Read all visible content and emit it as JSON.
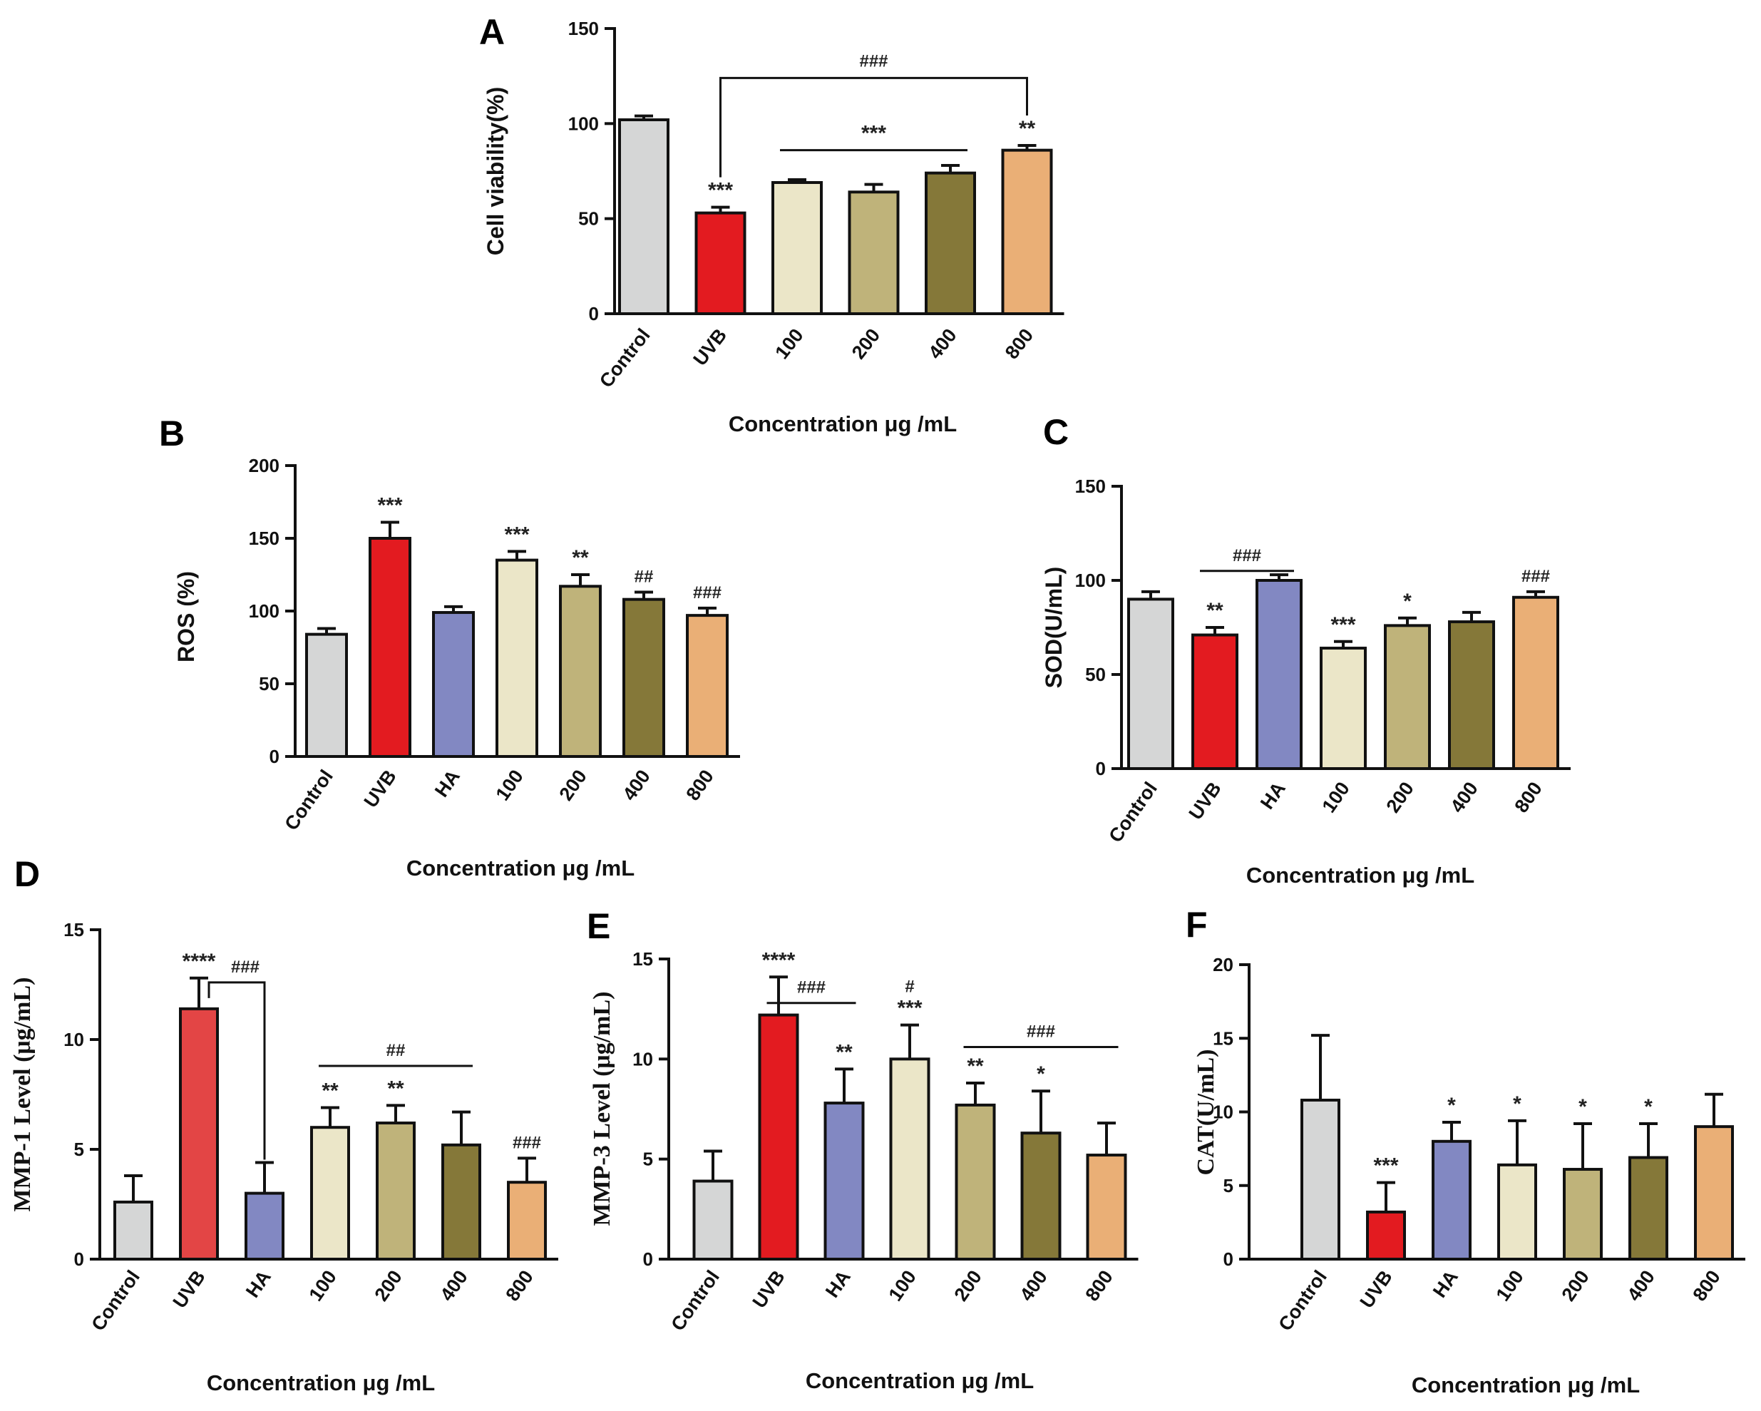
{
  "colors": {
    "Control": "#d5d6d6",
    "UVB": "#e31b20",
    "UVB_D": "#e34545",
    "HA": "#8288c2",
    "c100": "#ebe6c8",
    "c200": "#bfb37a",
    "c400": "#857839",
    "c800": "#eaaf76"
  },
  "chart_data": [
    {
      "panel": "A",
      "type": "bar",
      "categories": [
        "Control",
        "UVB",
        "100",
        "200",
        "400",
        "800"
      ],
      "values": [
        102,
        53,
        69,
        64,
        74,
        86
      ],
      "errors": [
        2,
        3,
        1.5,
        4,
        4,
        2.5
      ],
      "ylabel": "Cell viability(%)",
      "xlabel": "Concentration μg /mL",
      "ylim": [
        0,
        150
      ],
      "yticks": [
        0,
        50,
        100,
        150
      ],
      "tick_labels": [
        "0",
        "50",
        "100",
        "150"
      ],
      "annotations": [
        {
          "bar": 1,
          "text": "***"
        },
        {
          "bar": 5,
          "text": "**"
        }
      ],
      "brackets": [
        {
          "kind": "bracket",
          "from": 1,
          "to": 5,
          "y": 124,
          "text": "###"
        },
        {
          "kind": "line",
          "from": 2,
          "to": 4,
          "y": 86,
          "text": "***"
        }
      ]
    },
    {
      "panel": "B",
      "type": "bar",
      "categories": [
        "Control",
        "UVB",
        "HA",
        "100",
        "200",
        "400",
        "800"
      ],
      "values": [
        84,
        150,
        99,
        135,
        117,
        108,
        97
      ],
      "errors": [
        4,
        11,
        4,
        6,
        8,
        5,
        5
      ],
      "ylabel": "ROS (%)",
      "xlabel": "Concentration μg /mL",
      "ylim": [
        0,
        200
      ],
      "yticks": [
        0,
        50,
        100,
        150,
        200
      ],
      "tick_labels": [
        "0",
        "50",
        "100",
        "150",
        "200"
      ],
      "annotations": [
        {
          "bar": 1,
          "text": "***"
        },
        {
          "bar": 3,
          "text": "***"
        },
        {
          "bar": 4,
          "text": "**"
        },
        {
          "bar": 5,
          "text": "##"
        },
        {
          "bar": 6,
          "text": "###"
        }
      ],
      "brackets": []
    },
    {
      "panel": "C",
      "type": "bar",
      "categories": [
        "Control",
        "UVB",
        "HA",
        "100",
        "200",
        "400",
        "800"
      ],
      "values": [
        90,
        71,
        100,
        64,
        76,
        78,
        91
      ],
      "errors": [
        4,
        4,
        3,
        3.5,
        4,
        5,
        3
      ],
      "ylabel": "SOD(U/mL)",
      "xlabel": "Concentration μg /mL",
      "ylim": [
        0,
        150
      ],
      "yticks": [
        0,
        50,
        100,
        150
      ],
      "tick_labels": [
        "0",
        "50",
        "100",
        "150"
      ],
      "annotations": [
        {
          "bar": 1,
          "text": "**"
        },
        {
          "bar": 3,
          "text": "***"
        },
        {
          "bar": 4,
          "text": "*"
        },
        {
          "bar": 6,
          "text": "###"
        }
      ],
      "brackets": [
        {
          "kind": "line",
          "from": 1,
          "to": 2,
          "y": 105,
          "text": "###"
        }
      ]
    },
    {
      "panel": "D",
      "type": "bar",
      "categories": [
        "Control",
        "UVB",
        "HA",
        "100",
        "200",
        "400",
        "800"
      ],
      "values": [
        2.6,
        11.4,
        3.0,
        6.0,
        6.2,
        5.2,
        3.5
      ],
      "errors": [
        1.2,
        1.4,
        1.4,
        0.9,
        0.8,
        1.5,
        1.1
      ],
      "ylabel": "MMP-1 Level (μg/mL)",
      "xlabel": "Concentration μg /mL",
      "ylim": [
        0,
        15
      ],
      "yticks": [
        0,
        5,
        10,
        15
      ],
      "tick_labels": [
        "0",
        "5",
        "10",
        "15"
      ],
      "annotations": [
        {
          "bar": 1,
          "text": "****"
        },
        {
          "bar": 3,
          "text": "**"
        },
        {
          "bar": 4,
          "text": "**"
        },
        {
          "bar": 6,
          "text": "###"
        }
      ],
      "brackets": [
        {
          "kind": "step",
          "from": 1,
          "to": 2,
          "y": 12.6,
          "text": "###"
        },
        {
          "kind": "line",
          "from": 3,
          "to": 5,
          "y": 8.8,
          "text": "##"
        }
      ]
    },
    {
      "panel": "E",
      "type": "bar",
      "categories": [
        "Control",
        "UVB",
        "HA",
        "100",
        "200",
        "400",
        "800"
      ],
      "values": [
        3.9,
        12.2,
        7.8,
        10.0,
        7.7,
        6.3,
        5.2
      ],
      "errors": [
        1.5,
        1.9,
        1.7,
        1.7,
        1.1,
        2.1,
        1.6
      ],
      "ylabel": "MMP-3 Level (μg/mL)",
      "xlabel": "Concentration μg /mL",
      "ylim": [
        0,
        15
      ],
      "yticks": [
        0,
        5,
        10,
        15
      ],
      "tick_labels": [
        "0",
        "5",
        "10",
        "15"
      ],
      "annotations": [
        {
          "bar": 1,
          "text": "****"
        },
        {
          "bar": 2,
          "text": "**"
        },
        {
          "bar": 3,
          "text": "***"
        },
        {
          "bar": 3,
          "text": "#",
          "row": 2
        },
        {
          "bar": 4,
          "text": "**"
        },
        {
          "bar": 5,
          "text": "*"
        }
      ],
      "brackets": [
        {
          "kind": "line",
          "from": 1,
          "to": 2,
          "y": 12.8,
          "text": "###"
        },
        {
          "kind": "line",
          "from": 4,
          "to": 6,
          "y": 10.6,
          "text": "###"
        }
      ]
    },
    {
      "panel": "F",
      "type": "bar",
      "categories": [
        "Control",
        "UVB",
        "HA",
        "100",
        "200",
        "400",
        "800"
      ],
      "values": [
        10.8,
        3.2,
        8.0,
        6.4,
        6.1,
        6.9,
        9.0
      ],
      "errors": [
        4.4,
        2.0,
        1.3,
        3.0,
        3.1,
        2.3,
        2.2
      ],
      "ylabel": "CAT(U/mL)",
      "xlabel": "Concentration μg /mL",
      "ylim": [
        0,
        20
      ],
      "yticks": [
        0,
        5,
        10,
        15,
        20
      ],
      "tick_labels": [
        "0",
        "5",
        "10",
        "15",
        "20"
      ],
      "annotations": [
        {
          "bar": 1,
          "text": "***"
        },
        {
          "bar": 2,
          "text": "*"
        },
        {
          "bar": 3,
          "text": "*"
        },
        {
          "bar": 4,
          "text": "*"
        },
        {
          "bar": 5,
          "text": "*"
        }
      ],
      "brackets": []
    }
  ]
}
